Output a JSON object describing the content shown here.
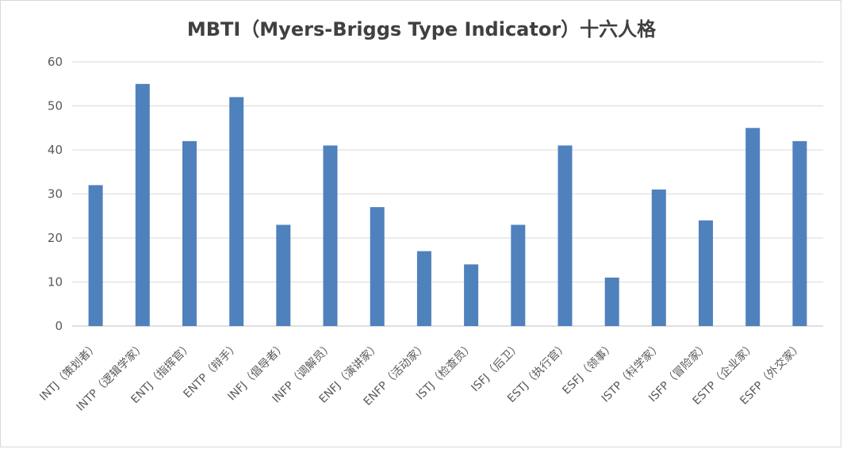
{
  "chart_data": {
    "type": "bar",
    "title": "MBTI（Myers-Briggs Type Indicator）十六人格",
    "xlabel": "",
    "ylabel": "",
    "ylim": [
      0,
      60
    ],
    "yticks": [
      0,
      10,
      20,
      30,
      40,
      50,
      60
    ],
    "grid": true,
    "legend": "none",
    "categories": [
      "INTJ（策划者）",
      "INTP（逻辑学家）",
      "ENTJ（指挥官）",
      "ENTP（辩手）",
      "INFJ（倡导者）",
      "INFP（调解员）",
      "ENFJ（演讲家）",
      "ENFP（活动家）",
      "ISTJ（检查员）",
      "ISFJ（后卫）",
      "ESTJ（执行官）",
      "ESFJ（领事）",
      "ISTP（科学家）",
      "ISFP（冒险家）",
      "ESTP（企业家）",
      "ESFP（外交家）"
    ],
    "values": [
      32,
      55,
      42,
      52,
      23,
      41,
      27,
      17,
      14,
      23,
      41,
      11,
      31,
      24,
      45,
      42
    ],
    "colors": {
      "bar": "#4f81bd",
      "grid": "#d9d9d9",
      "axis": "#bfbfbf",
      "text": "#595959",
      "title": "#404040"
    }
  }
}
